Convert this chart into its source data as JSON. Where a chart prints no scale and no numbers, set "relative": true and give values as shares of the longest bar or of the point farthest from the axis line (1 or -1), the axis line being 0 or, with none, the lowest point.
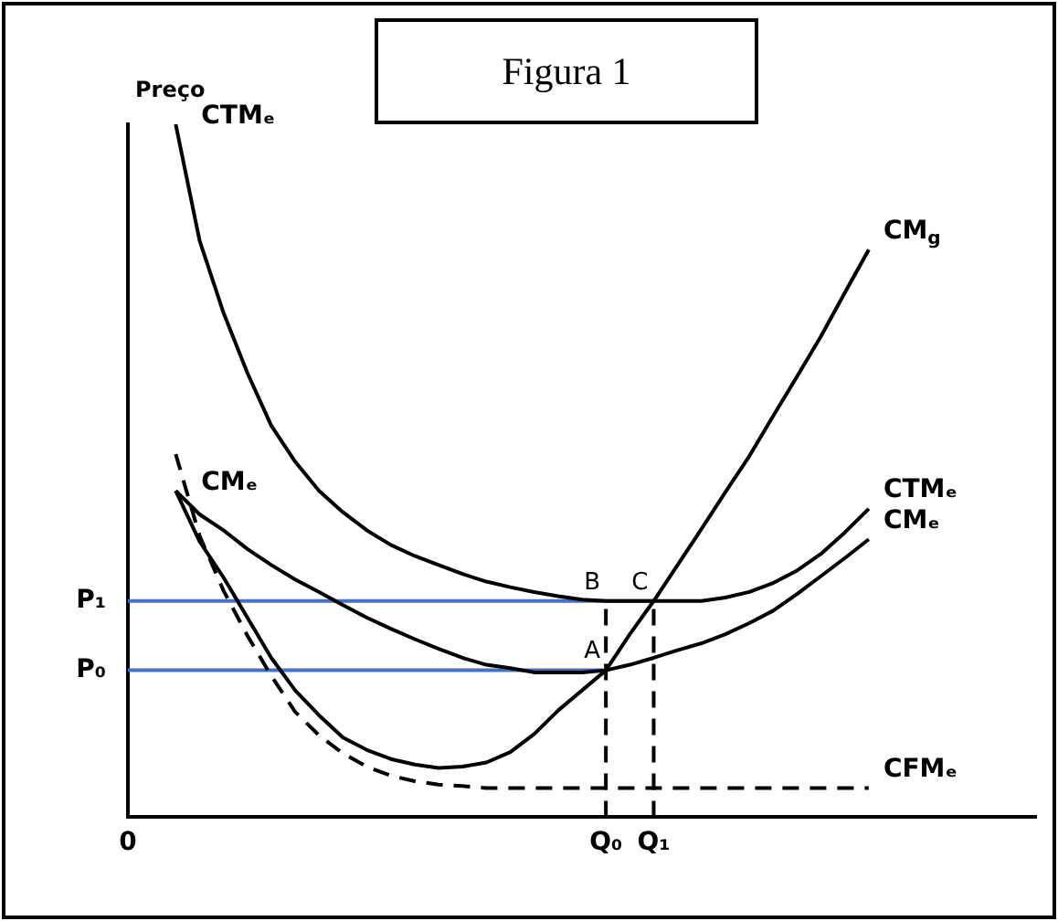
{
  "chart_data": {
    "type": "line",
    "title": "Figura 1",
    "ylabel": "Preço",
    "relative": true,
    "legend": false,
    "grid": false,
    "marker": "none",
    "categories": [
      "0",
      null,
      null,
      null,
      null,
      null,
      null,
      null,
      null,
      null,
      null,
      null,
      null,
      null,
      null,
      null,
      null,
      null,
      null,
      null,
      "Q₀",
      null,
      "Q₁",
      null,
      null,
      null,
      null,
      null,
      null,
      null,
      null,
      null,
      null,
      null,
      null,
      null,
      null,
      null,
      null
    ],
    "series": [
      {
        "name": "CTMₑ",
        "color": "#000000",
        "line_style": "solid",
        "values": [
          null,
          null,
          1.0,
          0.832,
          0.728,
          0.641,
          0.565,
          0.513,
          0.471,
          0.44,
          0.414,
          0.393,
          0.377,
          0.364,
          0.351,
          0.34,
          0.332,
          0.325,
          0.319,
          0.314,
          0.312,
          0.312,
          0.312,
          0.312,
          0.312,
          0.317,
          0.325,
          0.338,
          0.356,
          0.38,
          0.411,
          0.445,
          null,
          null,
          null,
          null,
          null,
          null,
          null
        ]
      },
      {
        "name": "CMₑ",
        "color": "#000000",
        "line_style": "solid",
        "values": [
          null,
          null,
          0.471,
          0.437,
          0.414,
          0.387,
          0.364,
          0.343,
          0.325,
          0.306,
          0.288,
          0.272,
          0.257,
          0.243,
          0.23,
          0.22,
          0.215,
          0.209,
          0.209,
          0.209,
          0.212,
          0.22,
          0.23,
          0.241,
          0.251,
          0.264,
          0.28,
          0.298,
          0.322,
          0.348,
          0.374,
          0.401,
          null,
          null,
          null,
          null,
          null,
          null,
          null
        ]
      },
      {
        "name": "CM$_{g}$",
        "color": "#000000",
        "line_style": "solid",
        "values": [
          null,
          null,
          0.471,
          0.398,
          0.346,
          0.288,
          0.23,
          0.183,
          0.147,
          0.115,
          0.097,
          0.084,
          0.076,
          0.071,
          0.073,
          0.079,
          0.094,
          0.12,
          0.154,
          0.183,
          0.212,
          0.264,
          0.312,
          0.364,
          0.416,
          0.469,
          0.521,
          0.579,
          0.636,
          0.694,
          0.757,
          0.819,
          null,
          null,
          null,
          null,
          null,
          null,
          null
        ]
      },
      {
        "name": "CFMₑ",
        "color": "#000000",
        "line_style": "dashed",
        "values": [
          null,
          null,
          0.524,
          0.406,
          0.327,
          0.262,
          0.204,
          0.152,
          0.118,
          0.092,
          0.073,
          0.06,
          0.052,
          0.047,
          0.045,
          0.042,
          0.042,
          0.042,
          0.042,
          0.042,
          0.042,
          0.042,
          0.042,
          0.042,
          0.042,
          0.042,
          0.042,
          0.042,
          0.042,
          0.042,
          0.042,
          0.042,
          null,
          null,
          null,
          null,
          null,
          null,
          null
        ]
      },
      {
        "color": "#4472c4",
        "line_style": "solid",
        "x": [
          "0",
          "Q₁"
        ],
        "values": [
          0.312,
          0.312
        ]
      },
      {
        "color": "#4472c4",
        "line_style": "solid",
        "x": [
          "0",
          "Q₀"
        ],
        "values": [
          0.212,
          0.212
        ]
      },
      {
        "color": "#000000",
        "line_style": "dashed",
        "x": [
          "Q₀",
          "Q₀"
        ],
        "values": [
          0,
          0.312
        ]
      },
      {
        "color": "#000000",
        "line_style": "dashed",
        "x": [
          "Q₁",
          "Q₁"
        ],
        "values": [
          0,
          0.312
        ]
      }
    ],
    "annotations": [
      {
        "text": "P₁",
        "x": "0",
        "y": 0.312
      },
      {
        "text": "P₀",
        "x": "0",
        "y": 0.212
      },
      {
        "text": "B",
        "x": "Q₀",
        "y": 0.312
      },
      {
        "text": "C",
        "x": "Q₁",
        "y": 0.312
      },
      {
        "text": "A",
        "x": "Q₀",
        "y": 0.212
      },
      "CTMₑ",
      "CMₑ"
    ]
  }
}
